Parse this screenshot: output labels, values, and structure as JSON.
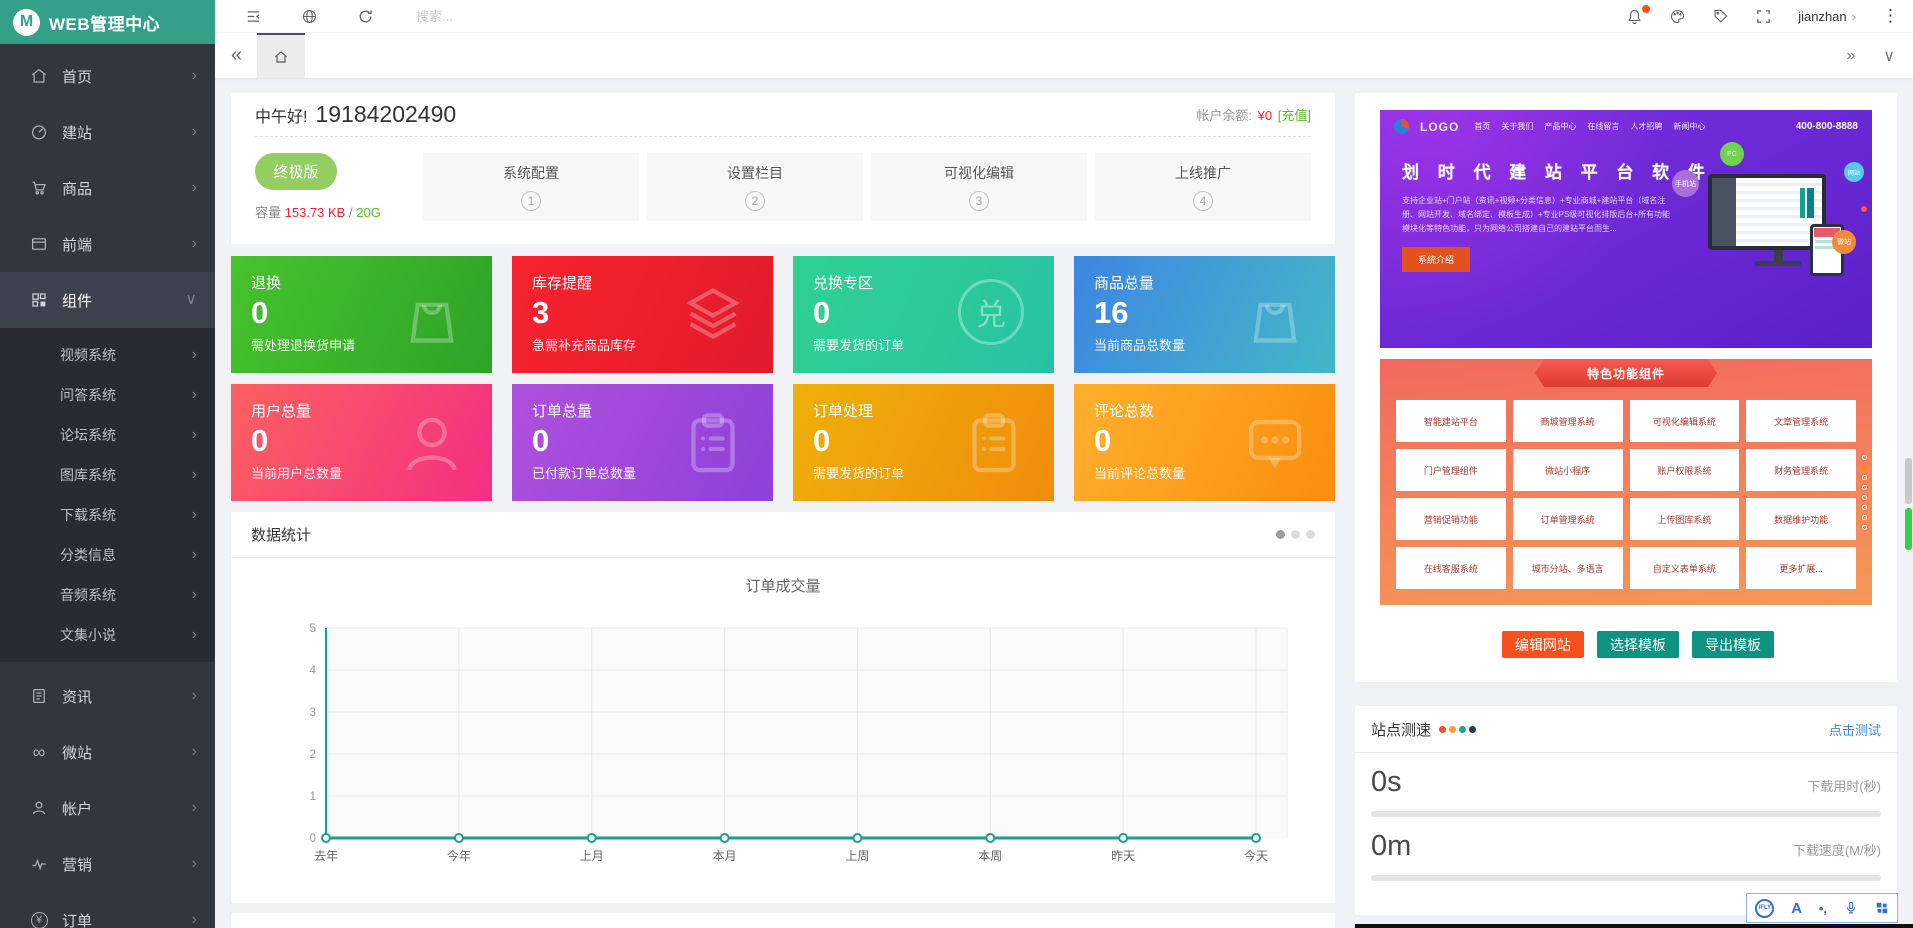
{
  "app": {
    "sidebar_title": "WEB管理中心",
    "logo_letter": "M"
  },
  "glyphs": {
    "chevron": "›",
    "expand_down": "∨",
    "back": "«",
    "forward": "»",
    "collapse": "∨",
    "kebab": "⋮",
    "infinity": "∞",
    "yen": "¥",
    "exchange": "兑"
  },
  "topbar": {
    "search_placeholder": "搜索...",
    "username": "jianzhan"
  },
  "sidebar": {
    "items": [
      {
        "label": "首页",
        "icon": "home-icon"
      },
      {
        "label": "建站",
        "icon": "gauge-icon"
      },
      {
        "label": "商品",
        "icon": "cart-icon"
      },
      {
        "label": "前端",
        "icon": "browser-icon"
      },
      {
        "label": "组件",
        "icon": "components-icon",
        "expanded": true
      },
      {
        "label": "资讯",
        "icon": "news-icon"
      },
      {
        "label": "微站",
        "icon": "infinity-icon"
      },
      {
        "label": "帐户",
        "icon": "user-icon"
      },
      {
        "label": "营销",
        "icon": "marketing-icon"
      },
      {
        "label": "订单",
        "icon": "yen-circle-icon"
      }
    ],
    "submenu": [
      "视频系统",
      "问答系统",
      "论坛系统",
      "图库系统",
      "下载系统",
      "分类信息",
      "音频系统",
      "文集小说"
    ]
  },
  "greeting": {
    "hello": "中午好!",
    "account": "19184202490",
    "balance_label": "帐户余额:",
    "balance_value": "¥0",
    "recharge_link": "[充值]"
  },
  "plan": {
    "badge": "终极版",
    "capacity_label": "容量",
    "capacity_used": "153.73 KB",
    "capacity_sep": "/",
    "capacity_total": "20G"
  },
  "steps": [
    {
      "label": "系统配置",
      "num": "1"
    },
    {
      "label": "设置栏目",
      "num": "2"
    },
    {
      "label": "可视化编辑",
      "num": "3"
    },
    {
      "label": "上线推广",
      "num": "4"
    }
  ],
  "stats": [
    {
      "title": "退换",
      "value": "0",
      "desc": "需处理退换货申请",
      "icon": "bag-icon",
      "from": "#46c32c",
      "to": "#2ea32a"
    },
    {
      "title": "库存提醒",
      "value": "3",
      "desc": "急需补充商品库存",
      "icon": "layers-icon",
      "from": "#f8232e",
      "to": "#e01b2b"
    },
    {
      "title": "兑换专区",
      "value": "0",
      "desc": "需要发货的订单",
      "icon": "exchange-icon",
      "from": "#2fd194",
      "to": "#28c2a2"
    },
    {
      "title": "商品总量",
      "value": "16",
      "desc": "当前商品总数量",
      "icon": "bag-icon",
      "from": "#3e86e2",
      "to": "#43b7c6"
    },
    {
      "title": "用户总量",
      "value": "0",
      "desc": "当前用户总数量",
      "icon": "user-icon",
      "from": "#fb6061",
      "to": "#f52f80"
    },
    {
      "title": "订单总量",
      "value": "0",
      "desc": "已付款订单总数量",
      "icon": "clipboard-icon",
      "from": "#b050dd",
      "to": "#8d41d8"
    },
    {
      "title": "订单处理",
      "value": "0",
      "desc": "需要发货的订单",
      "icon": "clipboard-icon",
      "from": "#eeb00a",
      "to": "#f08c0c"
    },
    {
      "title": "评论总数",
      "value": "0",
      "desc": "当前评论总数量",
      "icon": "comment-icon",
      "from": "#feb02d",
      "to": "#fa8d0e"
    }
  ],
  "chart_panel": {
    "header": "数据统计"
  },
  "chart_data": {
    "type": "line",
    "title": "订单成交量",
    "categories": [
      "去年",
      "今年",
      "上月",
      "本月",
      "上周",
      "本周",
      "昨天",
      "今天"
    ],
    "series": [
      {
        "name": "订单成交量",
        "values": [
          0,
          0,
          0,
          0,
          0,
          0,
          0,
          0
        ]
      }
    ],
    "ylim": [
      0,
      5
    ],
    "yticks": [
      0,
      1,
      2,
      3,
      4,
      5
    ],
    "grid": true,
    "legend_position": "none",
    "line_color": "#17a08c",
    "plot_bg": "#fafafa"
  },
  "promo": {
    "logo": "LOGO",
    "nav": [
      "首页",
      "关于我们",
      "产品中心",
      "在线留言",
      "人才招聘",
      "新闻中心"
    ],
    "phone": "400-800-8888",
    "headline": "划 时 代 建 站 平 台 软 件",
    "desc": "支持企业站+门户站（资讯+视频+分类信息）+专业商城+建站平台（域名注册、网站开发、域名绑定、模板生成）+专业PS级可视化排版后台+所有功能模块化等特色功能，只为网络公司搭建自己的建站平台而生...",
    "cta": "系统介绍",
    "banner": "特色功能组件",
    "badges": [
      {
        "label": "PC",
        "color": "#6fd34f"
      },
      {
        "label": "手机站",
        "color": "#a86fd9"
      },
      {
        "label": "网站",
        "color": "#59c8e8"
      },
      {
        "label": "微站",
        "color": "#f08a3c"
      }
    ],
    "grid": [
      "智能建站平台",
      "商城管理系统",
      "可视化编辑系统",
      "文章管理系统",
      "门户管理组件",
      "微站小程序",
      "账户权限系统",
      "财务管理系统",
      "营销促销功能",
      "订单管理系统",
      "上传图库系统",
      "数据维护功能",
      "在线客服系统",
      "城市分站、多语言",
      "自定义表单系统",
      "更多扩展..."
    ]
  },
  "template_buttons": [
    {
      "label": "编辑网站",
      "color": "#f4511e"
    },
    {
      "label": "选择模板",
      "color": "#0e9382"
    },
    {
      "label": "导出模板",
      "color": "#0e9382"
    }
  ],
  "speedtest": {
    "title": "站点测速",
    "dot_colors": [
      "#f4502c",
      "#f7a22b",
      "#18a690",
      "#2a3950"
    ],
    "link": "点击测试",
    "rows": [
      {
        "value": "0s",
        "label": "下载用时(秒)"
      },
      {
        "value": "0m",
        "label": "下载速度(M/秒)"
      }
    ]
  },
  "ifly": {
    "logo": "iFLY",
    "a_label": "A",
    "punct_label": "•,"
  }
}
